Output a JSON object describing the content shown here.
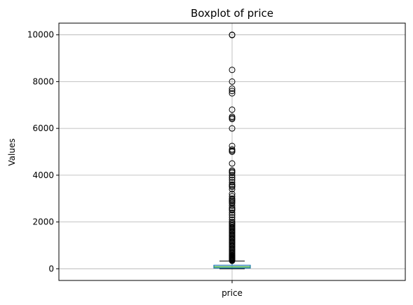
{
  "chart_data": {
    "type": "boxplot",
    "title": "Boxplot of price",
    "xlabel": "",
    "ylabel": "Values",
    "categories": [
      "price"
    ],
    "ylim": [
      -500,
      10500
    ],
    "y_ticks": [
      0,
      2000,
      4000,
      6000,
      8000,
      10000
    ],
    "grid": true,
    "box": {
      "q1": 30,
      "median": 80,
      "q3": 150,
      "whisker_low": 0,
      "whisker_high": 330
    },
    "outliers": [
      340,
      360,
      380,
      400,
      420,
      440,
      460,
      480,
      500,
      520,
      550,
      580,
      600,
      650,
      700,
      750,
      800,
      850,
      900,
      950,
      1000,
      1050,
      1100,
      1150,
      1200,
      1250,
      1300,
      1350,
      1400,
      1450,
      1500,
      1550,
      1600,
      1650,
      1700,
      1750,
      1800,
      1850,
      1900,
      1950,
      2000,
      2100,
      2200,
      2300,
      2400,
      2500,
      2550,
      2600,
      2700,
      2800,
      2850,
      2900,
      2950,
      3000,
      3100,
      3200,
      3400,
      3500,
      3550,
      3600,
      3700,
      3800,
      3900,
      4000,
      4100,
      4150,
      4200,
      4500,
      5000,
      5050,
      5100,
      5250,
      6000,
      6400,
      6450,
      6500,
      6800,
      7500,
      7600,
      7700,
      8000,
      8500,
      9990,
      10000
    ],
    "colors": {
      "box": "#1f77b4",
      "median": "#2ca02c",
      "outlier": "#000000",
      "grid": "#b0b0b0"
    }
  }
}
